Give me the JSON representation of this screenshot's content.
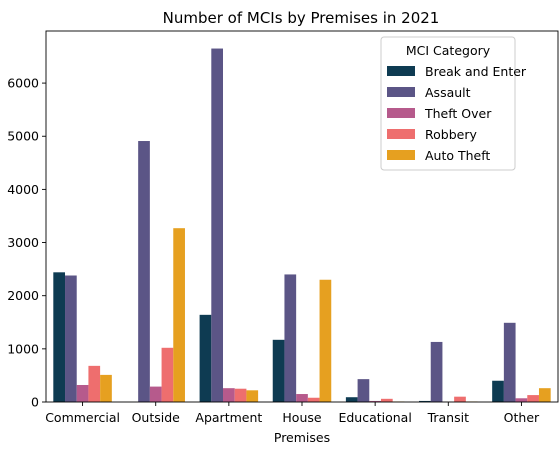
{
  "chart_data": {
    "type": "bar",
    "title": "Number of MCIs by Premises in 2021",
    "xlabel": "Premises",
    "ylabel": "",
    "categories": [
      "Commercial",
      "Outside",
      "Apartment",
      "House",
      "Educational",
      "Transit",
      "Other"
    ],
    "yticks": [
      0,
      1000,
      2000,
      3000,
      4000,
      5000,
      6000
    ],
    "ylim": [
      0,
      6980
    ],
    "grid": false,
    "legend": {
      "title": "MCI Category",
      "placement": "top-right"
    },
    "series": [
      {
        "name": "Break and Enter",
        "color": "#0e3b52",
        "values": [
          2440,
          0,
          1640,
          1170,
          90,
          20,
          400
        ]
      },
      {
        "name": "Assault",
        "color": "#5b5586",
        "values": [
          2380,
          4910,
          6650,
          2400,
          430,
          1130,
          1490
        ]
      },
      {
        "name": "Theft Over",
        "color": "#b65a8c",
        "values": [
          320,
          290,
          260,
          150,
          20,
          5,
          70
        ]
      },
      {
        "name": "Robbery",
        "color": "#ee6e6e",
        "values": [
          680,
          1020,
          250,
          80,
          60,
          100,
          130
        ]
      },
      {
        "name": "Auto Theft",
        "color": "#e6a020",
        "values": [
          510,
          3270,
          220,
          2300,
          10,
          10,
          260
        ]
      }
    ]
  }
}
